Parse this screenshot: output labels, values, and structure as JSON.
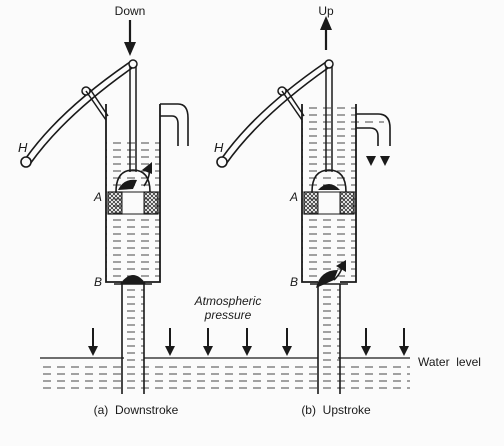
{
  "labels": {
    "down": "Down",
    "up": "Up",
    "handle_left": "H",
    "handle_right": "H",
    "valve_a_left": "A",
    "valve_a_right": "A",
    "valve_b_left": "B",
    "valve_b_right": "B",
    "atmospheric_line1": "Atmospheric",
    "atmospheric_line2": "pressure",
    "water_level": "Water  level",
    "caption_left": "(a)  Downstroke",
    "caption_right": "(b)  Upstroke"
  },
  "colors": {
    "ink": "#1a1a1a",
    "paper": "#fbfbfb"
  }
}
